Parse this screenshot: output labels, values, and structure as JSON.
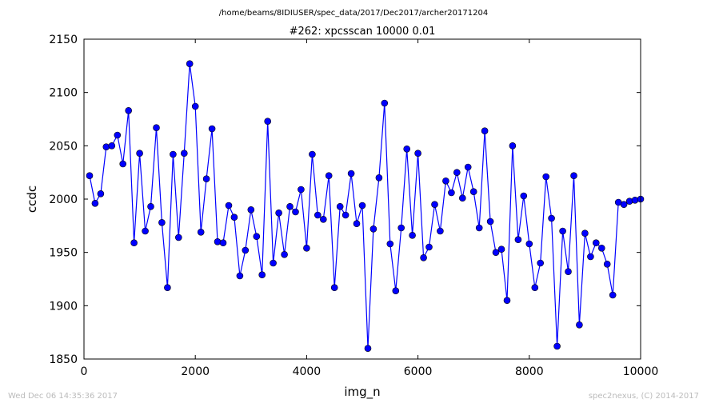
{
  "figure": {
    "suptitle": "/home/beams/8IDIUSER/spec_data/2017/Dec2017/archer20171204",
    "footer_left": "Wed Dec 06 14:35:36 2017",
    "footer_right": "spec2nexus, (C) 2014-2017"
  },
  "chart_data": {
    "type": "line",
    "title": "#262: xpcsscan 10000 0.01",
    "xlabel": "img_n",
    "ylabel": "ccdc",
    "xlim": [
      0,
      10000
    ],
    "ylim": [
      1850,
      2150
    ],
    "xticks": [
      0,
      2000,
      4000,
      6000,
      8000,
      10000
    ],
    "yticks": [
      1850,
      1900,
      1950,
      2000,
      2050,
      2100,
      2150
    ],
    "grid": false,
    "line_color": "#0000ff",
    "marker": "circle",
    "series": [
      {
        "x": [
          100,
          200,
          300,
          400,
          500,
          600,
          700,
          800,
          900,
          1000,
          1100,
          1200,
          1300,
          1400,
          1500,
          1600,
          1700,
          1800,
          1900,
          2000,
          2100,
          2200,
          2300,
          2400,
          2500,
          2600,
          2700,
          2800,
          2900,
          3000,
          3100,
          3200,
          3300,
          3400,
          3500,
          3600,
          3700,
          3800,
          3900,
          4000,
          4100,
          4200,
          4300,
          4400,
          4500,
          4600,
          4700,
          4800,
          4900,
          5000,
          5100,
          5200,
          5300,
          5400,
          5500,
          5600,
          5700,
          5800,
          5900,
          6000,
          6100,
          6200,
          6300,
          6400,
          6500,
          6600,
          6700,
          6800,
          6900,
          7000,
          7100,
          7200,
          7300,
          7400,
          7500,
          7600,
          7700,
          7800,
          7900,
          8000,
          8100,
          8200,
          8300,
          8400,
          8500,
          8600,
          8700,
          8800,
          8900,
          9000,
          9100,
          9200,
          9300,
          9400,
          9500,
          9600,
          9700,
          9800,
          9900,
          10000
        ],
        "values": [
          2022,
          1996,
          2005,
          2049,
          2050,
          2060,
          2033,
          2083,
          1959,
          2043,
          1970,
          1993,
          2067,
          1978,
          1917,
          2042,
          1964,
          2043,
          2127,
          2087,
          1969,
          2019,
          2066,
          1960,
          1959,
          1994,
          1983,
          1928,
          1952,
          1990,
          1965,
          1929,
          2073,
          1940,
          1987,
          1948,
          1993,
          1988,
          2009,
          1954,
          2042,
          1985,
          1981,
          2022,
          1917,
          1993,
          1985,
          2024,
          1977,
          1994,
          1860,
          1972,
          2020,
          2090,
          1958,
          1914,
          1973,
          2047,
          1966,
          2043,
          1945,
          1955,
          1995,
          1970,
          2017,
          2006,
          2025,
          2001,
          2030,
          2007,
          1973,
          2064,
          1979,
          1950,
          1953,
          1905,
          2050,
          1962,
          2003,
          1958,
          1917,
          1940,
          2021,
          1982,
          1862,
          1970,
          1932,
          2022,
          1882,
          1968,
          1946,
          1959,
          1954,
          1939,
          1910,
          1997,
          1995,
          1998,
          1999,
          2000
        ]
      }
    ]
  }
}
